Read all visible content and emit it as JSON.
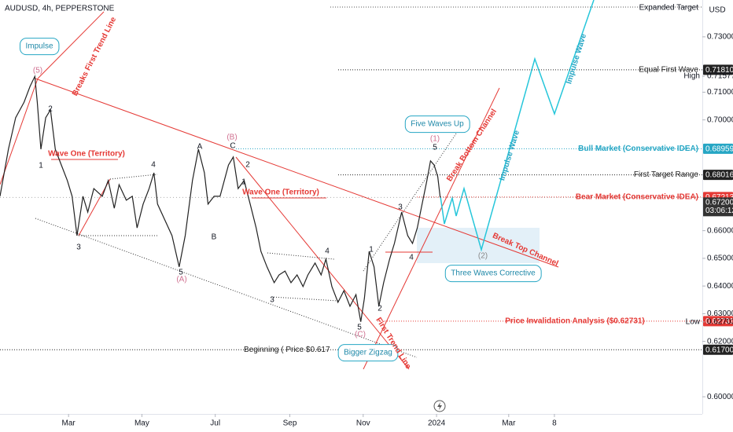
{
  "chart_data": {
    "type": "line",
    "title": "AUDUSD, 4h, PEPPERSTONE",
    "currency": "USD",
    "color": "#222222",
    "x": [
      2,
      9,
      15,
      22,
      27,
      31,
      33,
      36,
      40,
      44,
      48,
      53,
      58,
      62,
      66,
      71,
      75,
      80,
      87,
      92,
      97,
      101,
      107,
      112,
      116,
      121,
      126,
      130,
      133,
      139,
      145,
      151,
      156,
      162,
      167,
      172,
      175,
      180,
      185,
      192,
      196,
      200,
      205,
      210,
      215,
      219,
      224,
      230,
      234,
      239,
      244,
      249,
      254,
      258,
      264,
      269,
      273,
      278,
      283,
      288,
      293,
      298,
      302,
      305,
      309,
      313,
      317,
      321,
      326,
      330,
      336,
      341,
      345,
      349,
      353,
      357,
      360,
      363,
      366,
      368
    ],
    "values": [
      0.6724,
      0.6894,
      0.7008,
      0.7064,
      0.7121,
      0.7157,
      0.7064,
      0.6894,
      0.7008,
      0.7036,
      0.6894,
      0.6837,
      0.6781,
      0.6724,
      0.6582,
      0.6724,
      0.6667,
      0.6752,
      0.6724,
      0.6781,
      0.6681,
      0.6766,
      0.671,
      0.6724,
      0.661,
      0.6696,
      0.6752,
      0.6809,
      0.6696,
      0.6639,
      0.6582,
      0.6469,
      0.6582,
      0.6781,
      0.6894,
      0.6809,
      0.6696,
      0.6724,
      0.6724,
      0.6837,
      0.6866,
      0.6752,
      0.6781,
      0.6696,
      0.661,
      0.6525,
      0.6469,
      0.6412,
      0.644,
      0.6454,
      0.6412,
      0.644,
      0.6398,
      0.644,
      0.6483,
      0.644,
      0.6497,
      0.6398,
      0.6341,
      0.6383,
      0.6327,
      0.6369,
      0.6271,
      0.6355,
      0.6525,
      0.6469,
      0.6327,
      0.6412,
      0.6497,
      0.6554,
      0.6667,
      0.6582,
      0.6554,
      0.661,
      0.6696,
      0.6781,
      0.6852,
      0.6837,
      0.6795,
      0.672
    ],
    "xlim": [
      2,
      586
    ],
    "xticks": [
      {
        "value": 59,
        "label": "Mar"
      },
      {
        "value": 120,
        "label": "May"
      },
      {
        "value": 181,
        "label": "Jul"
      },
      {
        "value": 243,
        "label": "Sep"
      },
      {
        "value": 304,
        "label": "Nov"
      },
      {
        "value": 365,
        "label": "2024"
      },
      {
        "value": 425,
        "label": "Mar"
      },
      {
        "value": 463,
        "label": "8"
      }
    ],
    "ylim": [
      0.5938,
      0.7433
    ],
    "yticks": [
      {
        "value": 0.73,
        "label": "0.73000"
      },
      {
        "value": 0.71,
        "label": "0.71000"
      },
      {
        "value": 0.7,
        "label": "0.70000"
      },
      {
        "value": 0.66,
        "label": "0.66000"
      },
      {
        "value": 0.65,
        "label": "0.65000"
      },
      {
        "value": 0.64,
        "label": "0.64000"
      },
      {
        "value": 0.63,
        "label": "0.63000"
      },
      {
        "value": 0.62,
        "label": "0.62000"
      },
      {
        "value": 0.6,
        "label": "0.60000"
      }
    ],
    "grid": false,
    "high": {
      "name": "High",
      "value": 0.71577,
      "label": "0.71577"
    },
    "low": {
      "name": "Low",
      "value": 0.62703,
      "label": "0.62703"
    },
    "current_price": {
      "value": 0.672,
      "label": "0.67200",
      "countdown": "03:06:12",
      "color": "#333333"
    },
    "levels": [
      {
        "text": "Equal First Wave",
        "value": 0.7181,
        "label": "0.71810",
        "color": "#222222"
      },
      {
        "text": "Bull Market (Conservative IDEA)",
        "value": 0.68959,
        "label": "0.68959",
        "color": "#26a6c4"
      },
      {
        "text": "First Target Range",
        "value": 0.68016,
        "label": "0.68016",
        "color": "#222222"
      },
      {
        "text": "Bear Market (Conservative IDEA)",
        "value": 0.67213,
        "label": "0.67213",
        "color": "#e53935"
      },
      {
        "text": "Price Invalidation Analysis ($0.62731)",
        "value": 0.62731,
        "label": "0.62731",
        "color": "#e53935"
      },
      {
        "text": "Beginning ( Price $0.617",
        "value": 0.617,
        "label": "0.61700",
        "color": "#222222"
      }
    ],
    "annotations": [
      "Impulse",
      "(5)",
      "Breaks First Trend Line",
      "2",
      "1",
      "Wave One (Territory)",
      "3",
      "4",
      "5",
      "(A)",
      "A",
      "B",
      "C",
      "(B)",
      "2",
      "1",
      "Wave One (Territory)",
      "4",
      "3",
      "5",
      "(C)",
      "Bigger Zigzag",
      "First Trend Line",
      "1",
      "2",
      "3",
      "4",
      "5",
      "(1)",
      "Five Waves Up",
      "Break Bottom Channel",
      "Break Top Channel",
      "(2)",
      "Three Waves Corrective",
      "Impulse Wave",
      "Impulse Wave",
      "Expanded Target"
    ]
  }
}
